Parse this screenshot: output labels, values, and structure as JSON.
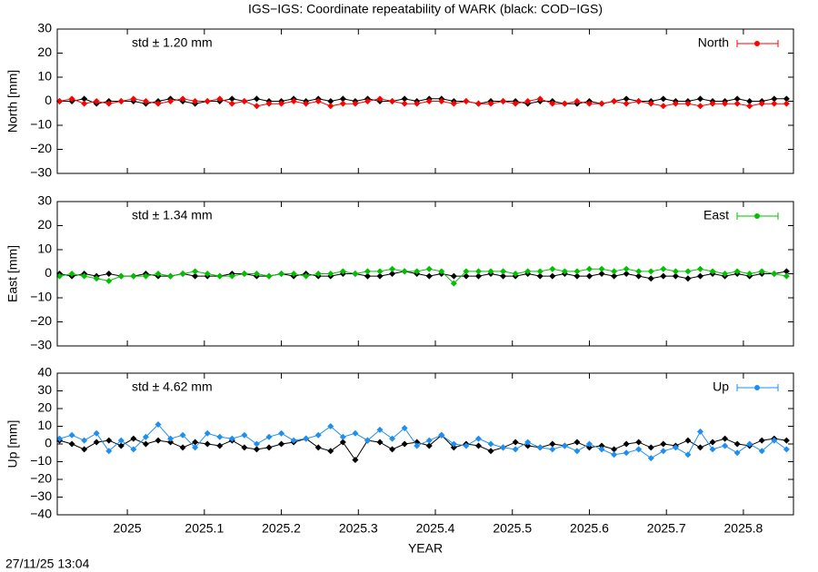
{
  "title": "IGS−IGS: Coordinate repeatability of WARK (black: COD−IGS)",
  "timestamp": "27/11/25 13:04",
  "chart_data": [
    {
      "type": "line",
      "ylabel": "North [mm]",
      "annotation": "std ± 1.20 mm",
      "legend": "upper right",
      "xlim": [
        2024.909,
        2025.865
      ],
      "xticks": [
        2025,
        2025.1,
        2025.2,
        2025.3,
        2025.4,
        2025.5,
        2025.6,
        2025.7,
        2025.8
      ],
      "ylim": [
        -30,
        30
      ],
      "yticks": [
        {
          "value": -30,
          "label": "−30"
        },
        {
          "value": -20,
          "label": "−20"
        },
        {
          "value": -10,
          "label": "−10"
        },
        0,
        10,
        20,
        30
      ],
      "x": [
        2024.912,
        2024.928,
        2024.944,
        2024.96,
        2024.976,
        2024.992,
        2025.008,
        2025.024,
        2025.04,
        2025.056,
        2025.072,
        2025.088,
        2025.104,
        2025.12,
        2025.136,
        2025.152,
        2025.168,
        2025.184,
        2025.2,
        2025.216,
        2025.232,
        2025.248,
        2025.264,
        2025.28,
        2025.296,
        2025.312,
        2025.328,
        2025.344,
        2025.36,
        2025.376,
        2025.392,
        2025.408,
        2025.424,
        2025.44,
        2025.456,
        2025.472,
        2025.488,
        2025.504,
        2025.52,
        2025.536,
        2025.552,
        2025.568,
        2025.584,
        2025.6,
        2025.616,
        2025.632,
        2025.648,
        2025.664,
        2025.68,
        2025.696,
        2025.712,
        2025.728,
        2025.744,
        2025.76,
        2025.776,
        2025.792,
        2025.808,
        2025.824,
        2025.84,
        2025.856
      ],
      "series": [
        {
          "color": "#000000",
          "values": [
            0,
            0,
            1,
            -1,
            0,
            0,
            0,
            -1,
            0,
            1,
            0,
            -1,
            0,
            0,
            1,
            0,
            1,
            0,
            0,
            1,
            0,
            1,
            0,
            1,
            0,
            1,
            0,
            0,
            1,
            0,
            1,
            1,
            0,
            0,
            -1,
            0,
            0,
            0,
            -1,
            0,
            0,
            -1,
            -1,
            0,
            -1,
            0,
            1,
            0,
            0,
            1,
            0,
            0,
            1,
            0,
            0,
            1,
            0,
            0,
            1,
            1
          ]
        },
        {
          "name": "North",
          "color": "#ff0000",
          "values": [
            0,
            1,
            -1,
            0,
            -1,
            0,
            1,
            0,
            -1,
            0,
            1,
            0,
            0,
            1,
            -1,
            0,
            -2,
            -1,
            -1,
            0,
            -1,
            0,
            -2,
            -1,
            -1,
            0,
            1,
            0,
            -1,
            -1,
            0,
            0,
            -1,
            0,
            -1,
            -1,
            0,
            -1,
            0,
            1,
            -1,
            -1,
            0,
            -1,
            -1,
            0,
            -1,
            0,
            -1,
            -2,
            -1,
            -1,
            -2,
            -1,
            -1,
            -1,
            -2,
            -1,
            -1,
            -1
          ]
        }
      ]
    },
    {
      "type": "line",
      "ylabel": "East [mm]",
      "annotation": "std ± 1.34 mm",
      "legend": "upper right",
      "xlim": [
        2024.909,
        2025.865
      ],
      "xticks": [
        2025,
        2025.1,
        2025.2,
        2025.3,
        2025.4,
        2025.5,
        2025.6,
        2025.7,
        2025.8
      ],
      "ylim": [
        -30,
        30
      ],
      "yticks": [
        {
          "value": -30,
          "label": "−30"
        },
        {
          "value": -20,
          "label": "−20"
        },
        {
          "value": -10,
          "label": "−10"
        },
        0,
        10,
        20,
        30
      ],
      "x": [
        2024.912,
        2024.928,
        2024.944,
        2024.96,
        2024.976,
        2024.992,
        2025.008,
        2025.024,
        2025.04,
        2025.056,
        2025.072,
        2025.088,
        2025.104,
        2025.12,
        2025.136,
        2025.152,
        2025.168,
        2025.184,
        2025.2,
        2025.216,
        2025.232,
        2025.248,
        2025.264,
        2025.28,
        2025.296,
        2025.312,
        2025.328,
        2025.344,
        2025.36,
        2025.376,
        2025.392,
        2025.408,
        2025.424,
        2025.44,
        2025.456,
        2025.472,
        2025.488,
        2025.504,
        2025.52,
        2025.536,
        2025.552,
        2025.568,
        2025.584,
        2025.6,
        2025.616,
        2025.632,
        2025.648,
        2025.664,
        2025.68,
        2025.696,
        2025.712,
        2025.728,
        2025.744,
        2025.76,
        2025.776,
        2025.792,
        2025.808,
        2025.824,
        2025.84,
        2025.856
      ],
      "series": [
        {
          "color": "#000000",
          "values": [
            0,
            -1,
            0,
            -1,
            0,
            -1,
            -1,
            0,
            -1,
            -1,
            0,
            -1,
            -1,
            -1,
            0,
            0,
            -1,
            -1,
            0,
            -1,
            0,
            -1,
            -1,
            0,
            0,
            -1,
            -1,
            0,
            1,
            0,
            -1,
            0,
            -1,
            -1,
            -1,
            0,
            -1,
            -1,
            0,
            -1,
            -1,
            0,
            -1,
            -1,
            0,
            -1,
            0,
            -1,
            -2,
            -1,
            -1,
            -2,
            -1,
            0,
            -1,
            0,
            -1,
            0,
            0,
            1
          ]
        },
        {
          "name": "East",
          "color": "#00c000",
          "values": [
            -1,
            0,
            -1,
            -2,
            -3,
            -1,
            -1,
            -1,
            0,
            -1,
            0,
            1,
            0,
            -1,
            -1,
            0,
            0,
            -1,
            0,
            0,
            -1,
            0,
            0,
            1,
            0,
            1,
            1,
            2,
            1,
            1,
            2,
            1,
            -4,
            1,
            1,
            1,
            1,
            0,
            1,
            1,
            2,
            1,
            1,
            2,
            2,
            1,
            2,
            1,
            1,
            2,
            1,
            1,
            2,
            1,
            0,
            1,
            0,
            1,
            0,
            -1
          ]
        }
      ]
    },
    {
      "type": "line",
      "ylabel": "Up [mm]",
      "annotation": "std ± 4.62 mm",
      "legend": "upper right",
      "xlabel": "YEAR",
      "xlim": [
        2024.909,
        2025.865
      ],
      "xticks": [
        2025,
        2025.1,
        2025.2,
        2025.3,
        2025.4,
        2025.5,
        2025.6,
        2025.7,
        2025.8
      ],
      "ylim": [
        -40,
        40
      ],
      "yticks": [
        {
          "value": -40,
          "label": "−40"
        },
        {
          "value": -30,
          "label": "−30"
        },
        {
          "value": -20,
          "label": "−20"
        },
        {
          "value": -10,
          "label": "−10"
        },
        0,
        10,
        20,
        30,
        40
      ],
      "x": [
        2024.912,
        2024.928,
        2024.944,
        2024.96,
        2024.976,
        2024.992,
        2025.008,
        2025.024,
        2025.04,
        2025.056,
        2025.072,
        2025.088,
        2025.104,
        2025.12,
        2025.136,
        2025.152,
        2025.168,
        2025.184,
        2025.2,
        2025.216,
        2025.232,
        2025.248,
        2025.264,
        2025.28,
        2025.296,
        2025.312,
        2025.328,
        2025.344,
        2025.36,
        2025.376,
        2025.392,
        2025.408,
        2025.424,
        2025.44,
        2025.456,
        2025.472,
        2025.488,
        2025.504,
        2025.52,
        2025.536,
        2025.552,
        2025.568,
        2025.584,
        2025.6,
        2025.616,
        2025.632,
        2025.648,
        2025.664,
        2025.68,
        2025.696,
        2025.712,
        2025.728,
        2025.744,
        2025.76,
        2025.776,
        2025.792,
        2025.808,
        2025.824,
        2025.84,
        2025.856
      ],
      "series": [
        {
          "color": "#000000",
          "values": [
            2,
            0,
            -3,
            1,
            2,
            -1,
            3,
            0,
            2,
            1,
            -2,
            1,
            0,
            -1,
            2,
            -2,
            -3,
            -2,
            0,
            1,
            3,
            -2,
            -4,
            1,
            -9,
            2,
            1,
            -3,
            0,
            1,
            -1,
            5,
            -2,
            0,
            -1,
            -4,
            -2,
            1,
            -1,
            -2,
            0,
            -1,
            1,
            -2,
            -1,
            -3,
            0,
            1,
            -2,
            0,
            -1,
            2,
            -2,
            1,
            3,
            0,
            -1,
            2,
            3,
            2
          ]
        },
        {
          "name": "Up",
          "color": "#1e8ff0",
          "values": [
            3,
            5,
            2,
            6,
            -4,
            2,
            -3,
            4,
            11,
            3,
            5,
            -2,
            6,
            4,
            3,
            5,
            0,
            4,
            6,
            2,
            3,
            5,
            10,
            4,
            6,
            2,
            8,
            3,
            9,
            -1,
            2,
            5,
            0,
            -1,
            3,
            0,
            -2,
            -3,
            1,
            -2,
            -3,
            -1,
            -4,
            0,
            -3,
            -6,
            -5,
            -3,
            -8,
            -4,
            -2,
            -6,
            7,
            -3,
            -1,
            -5,
            0,
            -4,
            2,
            -3
          ]
        }
      ]
    }
  ]
}
